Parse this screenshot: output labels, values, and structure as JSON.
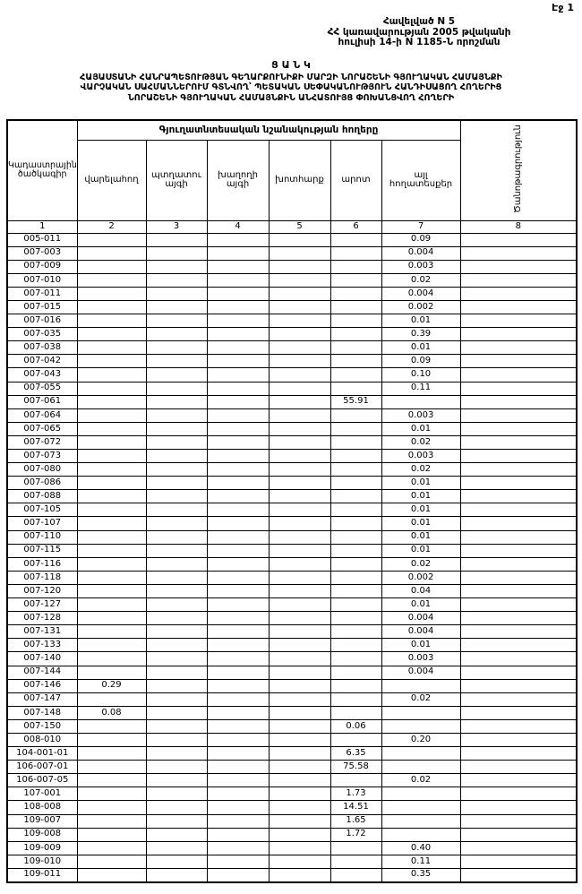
{
  "page_label": "Էջ 1",
  "header": {
    "annex_lines": [
      "Հավելված N 5",
      "ՀՀ կառավարության 2005 թվականի",
      "հուլիսի 14-ի N 1185-Ն որոշման"
    ],
    "doc_type": "Ց Ա Ն Կ",
    "title_lines": [
      "ՀԱՅԱՍՏԱՆԻ ՀԱՆՐԱՊԵՏՈՒԹՅԱՆ ԳԵՂԱՐՔՈՒՆԻՔԻ ՄԱՐԶԻ ՆՈՐԱՇԵՆԻ ԳՅՈՒՂԱԿԱՆ ՀԱՄԱՅՆՔԻ",
      "ՎԱՐՉԱԿԱՆ ՍԱՀՄԱՆՆԵՐՈՒՄ ԳՏՆՎՈՂ՝ ՊԵՏԱԿԱՆ ՍԵՓԱԿԱՆՈՒԹՅՈՒՆ ՀԱՆԴԻՍԱՑՈՂ ՀՈՂԵՐԻՑ",
      "ՆՈՐԱՇԵՆԻ ԳՅՈՒՂԱԿԱՆ ՀԱՄԱՅՆՔԻՆ ԱՆՀԱՏՈՒՅՑ ՓՈԽԱՆՑՎՈՂ ՀՈՂԵՐԻ"
    ]
  },
  "table": {
    "cadastral_header": "Կադաստրային ծածկագիր",
    "group_header": "Գյուղատնտեսական նշանակության հողերը",
    "sub_headers": [
      "վարելահող",
      "պտղատու այգի",
      "խաղողի այգի",
      "խոտհարք",
      "արոտ",
      "այլ հողատեսքեր"
    ],
    "note_header": "Ծանոթագրություն",
    "column_numbers": [
      "1",
      "2",
      "3",
      "4",
      "5",
      "6",
      "7",
      "8"
    ],
    "rows": [
      [
        "005-011",
        "",
        "",
        "",
        "",
        "",
        "0.09",
        ""
      ],
      [
        "007-003",
        "",
        "",
        "",
        "",
        "",
        "0.004",
        ""
      ],
      [
        "007-009",
        "",
        "",
        "",
        "",
        "",
        "0.003",
        ""
      ],
      [
        "007-010",
        "",
        "",
        "",
        "",
        "",
        "0.02",
        ""
      ],
      [
        "007-011",
        "",
        "",
        "",
        "",
        "",
        "0.004",
        ""
      ],
      [
        "007-015",
        "",
        "",
        "",
        "",
        "",
        "0.002",
        ""
      ],
      [
        "007-016",
        "",
        "",
        "",
        "",
        "",
        "0.01",
        ""
      ],
      [
        "007-035",
        "",
        "",
        "",
        "",
        "",
        "0.39",
        ""
      ],
      [
        "007-038",
        "",
        "",
        "",
        "",
        "",
        "0.01",
        ""
      ],
      [
        "007-042",
        "",
        "",
        "",
        "",
        "",
        "0.09",
        ""
      ],
      [
        "007-043",
        "",
        "",
        "",
        "",
        "",
        "0.10",
        ""
      ],
      [
        "007-055",
        "",
        "",
        "",
        "",
        "",
        "0.11",
        ""
      ],
      [
        "007-061",
        "",
        "",
        "",
        "",
        "55.91",
        "",
        ""
      ],
      [
        "007-064",
        "",
        "",
        "",
        "",
        "",
        "0.003",
        ""
      ],
      [
        "007-065",
        "",
        "",
        "",
        "",
        "",
        "0.01",
        ""
      ],
      [
        "007-072",
        "",
        "",
        "",
        "",
        "",
        "0.02",
        ""
      ],
      [
        "007-073",
        "",
        "",
        "",
        "",
        "",
        "0.003",
        ""
      ],
      [
        "007-080",
        "",
        "",
        "",
        "",
        "",
        "0.02",
        ""
      ],
      [
        "007-086",
        "",
        "",
        "",
        "",
        "",
        "0.01",
        ""
      ],
      [
        "007-088",
        "",
        "",
        "",
        "",
        "",
        "0.01",
        ""
      ],
      [
        "007-105",
        "",
        "",
        "",
        "",
        "",
        "0.01",
        ""
      ],
      [
        "007-107",
        "",
        "",
        "",
        "",
        "",
        "0.01",
        ""
      ],
      [
        "007-110",
        "",
        "",
        "",
        "",
        "",
        "0.01",
        ""
      ],
      [
        "007-115",
        "",
        "",
        "",
        "",
        "",
        "0.01",
        ""
      ],
      [
        "007-116",
        "",
        "",
        "",
        "",
        "",
        "0.02",
        ""
      ],
      [
        "007-118",
        "",
        "",
        "",
        "",
        "",
        "0.002",
        ""
      ],
      [
        "007-120",
        "",
        "",
        "",
        "",
        "",
        "0.04",
        ""
      ],
      [
        "007-127",
        "",
        "",
        "",
        "",
        "",
        "0.01",
        ""
      ],
      [
        "007-128",
        "",
        "",
        "",
        "",
        "",
        "0.004",
        ""
      ],
      [
        "007-131",
        "",
        "",
        "",
        "",
        "",
        "0.004",
        ""
      ],
      [
        "007-133",
        "",
        "",
        "",
        "",
        "",
        "0.01",
        ""
      ],
      [
        "007-140",
        "",
        "",
        "",
        "",
        "",
        "0.003",
        ""
      ],
      [
        "007-144",
        "",
        "",
        "",
        "",
        "",
        "0.004",
        ""
      ],
      [
        "007-146",
        "0.29",
        "",
        "",
        "",
        "",
        "",
        ""
      ],
      [
        "007-147",
        "",
        "",
        "",
        "",
        "",
        "0.02",
        ""
      ],
      [
        "007-148",
        "0.08",
        "",
        "",
        "",
        "",
        "",
        ""
      ],
      [
        "007-150",
        "",
        "",
        "",
        "",
        "0.06",
        "",
        ""
      ],
      [
        "008-010",
        "",
        "",
        "",
        "",
        "",
        "0.20",
        ""
      ],
      [
        "104-001-01",
        "",
        "",
        "",
        "",
        "6.35",
        "",
        ""
      ],
      [
        "106-007-01",
        "",
        "",
        "",
        "",
        "75.58",
        "",
        ""
      ],
      [
        "106-007-05",
        "",
        "",
        "",
        "",
        "",
        "0.02",
        ""
      ],
      [
        "107-001",
        "",
        "",
        "",
        "",
        "1.73",
        "",
        ""
      ],
      [
        "108-008",
        "",
        "",
        "",
        "",
        "14.51",
        "",
        ""
      ],
      [
        "109-007",
        "",
        "",
        "",
        "",
        "1.65",
        "",
        ""
      ],
      [
        "109-008",
        "",
        "",
        "",
        "",
        "1.72",
        "",
        ""
      ],
      [
        "109-009",
        "",
        "",
        "",
        "",
        "",
        "0.40",
        ""
      ],
      [
        "109-010",
        "",
        "",
        "",
        "",
        "",
        "0.11",
        ""
      ],
      [
        "109-011",
        "",
        "",
        "",
        "",
        "",
        "0.35",
        ""
      ]
    ]
  }
}
